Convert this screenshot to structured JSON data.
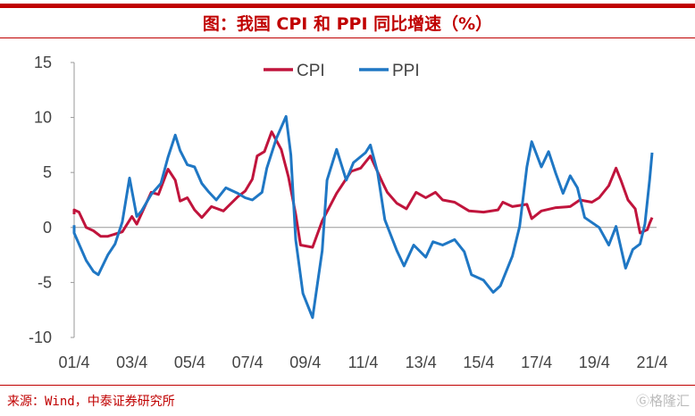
{
  "title": "图：我国 CPI 和 PPI 同比增速（%）",
  "source": "来源：Wind，中泰证券研究所",
  "logo": "格隆汇",
  "chart_data": {
    "type": "line",
    "title": "图：我国 CPI 和 PPI 同比增速（%）",
    "xlabel": "",
    "ylabel": "",
    "ylim": [
      -10,
      15
    ],
    "yticks": [
      "15",
      "10",
      "5",
      "0",
      "-5",
      "-10"
    ],
    "xticks": [
      "01/4",
      "03/4",
      "05/4",
      "07/4",
      "09/4",
      "11/4",
      "13/4",
      "15/4",
      "17/4",
      "19/4",
      "21/4"
    ],
    "xrange": [
      "2001-04",
      "2021-04"
    ],
    "legend": "top-center",
    "grid": false,
    "series": [
      {
        "name": "CPI",
        "color": "#c0143c",
        "points": [
          [
            "2001-01",
            1.2
          ],
          [
            "2001-04",
            1.6
          ],
          [
            "2001-06",
            1.4
          ],
          [
            "2001-09",
            0
          ],
          [
            "2001-12",
            -0.3
          ],
          [
            "2002-03",
            -0.8
          ],
          [
            "2002-06",
            -0.8
          ],
          [
            "2002-12",
            -0.4
          ],
          [
            "2003-04",
            1.0
          ],
          [
            "2003-06",
            0.3
          ],
          [
            "2003-12",
            3.2
          ],
          [
            "2004-03",
            3.0
          ],
          [
            "2004-07",
            5.3
          ],
          [
            "2004-10",
            4.3
          ],
          [
            "2004-12",
            2.4
          ],
          [
            "2005-03",
            2.7
          ],
          [
            "2005-06",
            1.6
          ],
          [
            "2005-09",
            0.9
          ],
          [
            "2006-01",
            1.9
          ],
          [
            "2006-06",
            1.5
          ],
          [
            "2006-12",
            2.8
          ],
          [
            "2007-03",
            3.3
          ],
          [
            "2007-06",
            4.4
          ],
          [
            "2007-08",
            6.5
          ],
          [
            "2007-11",
            6.9
          ],
          [
            "2008-02",
            8.7
          ],
          [
            "2008-06",
            7.1
          ],
          [
            "2008-09",
            4.6
          ],
          [
            "2008-12",
            1.2
          ],
          [
            "2009-02",
            -1.6
          ],
          [
            "2009-07",
            -1.8
          ],
          [
            "2009-11",
            0.6
          ],
          [
            "2010-05",
            3.1
          ],
          [
            "2010-11",
            5.1
          ],
          [
            "2011-03",
            5.4
          ],
          [
            "2011-07",
            6.5
          ],
          [
            "2011-12",
            4.1
          ],
          [
            "2012-02",
            3.2
          ],
          [
            "2012-06",
            2.2
          ],
          [
            "2012-10",
            1.7
          ],
          [
            "2013-02",
            3.2
          ],
          [
            "2013-06",
            2.7
          ],
          [
            "2013-10",
            3.2
          ],
          [
            "2014-01",
            2.5
          ],
          [
            "2014-06",
            2.3
          ],
          [
            "2014-12",
            1.5
          ],
          [
            "2015-06",
            1.4
          ],
          [
            "2015-12",
            1.6
          ],
          [
            "2016-02",
            2.3
          ],
          [
            "2016-06",
            1.9
          ],
          [
            "2016-12",
            2.1
          ],
          [
            "2017-02",
            0.8
          ],
          [
            "2017-06",
            1.5
          ],
          [
            "2017-12",
            1.8
          ],
          [
            "2018-06",
            1.9
          ],
          [
            "2018-10",
            2.5
          ],
          [
            "2019-03",
            2.3
          ],
          [
            "2019-06",
            2.7
          ],
          [
            "2019-10",
            3.8
          ],
          [
            "2020-01",
            5.4
          ],
          [
            "2020-03",
            4.3
          ],
          [
            "2020-06",
            2.5
          ],
          [
            "2020-09",
            1.7
          ],
          [
            "2020-11",
            -0.5
          ],
          [
            "2021-01",
            -0.3
          ],
          [
            "2021-02",
            -0.2
          ],
          [
            "2021-03",
            0.4
          ],
          [
            "2021-04",
            0.9
          ]
        ]
      },
      {
        "name": "PPI",
        "color": "#1f77c4",
        "points": [
          [
            "2001-01",
            0.2
          ],
          [
            "2001-04",
            -0.5
          ],
          [
            "2001-09",
            -3
          ],
          [
            "2001-12",
            -4.0
          ],
          [
            "2002-02",
            -4.3
          ],
          [
            "2002-06",
            -2.5
          ],
          [
            "2002-09",
            -1.5
          ],
          [
            "2002-12",
            0.5
          ],
          [
            "2003-03",
            4.5
          ],
          [
            "2003-06",
            1.0
          ],
          [
            "2003-08",
            1.5
          ],
          [
            "2003-12",
            3.0
          ],
          [
            "2004-04",
            4.0
          ],
          [
            "2004-07",
            6.4
          ],
          [
            "2004-10",
            8.4
          ],
          [
            "2004-12",
            7.0
          ],
          [
            "2005-03",
            5.7
          ],
          [
            "2005-06",
            5.5
          ],
          [
            "2005-09",
            4.0
          ],
          [
            "2005-12",
            3.2
          ],
          [
            "2006-03",
            2.5
          ],
          [
            "2006-07",
            3.6
          ],
          [
            "2006-12",
            3.1
          ],
          [
            "2007-03",
            2.7
          ],
          [
            "2007-06",
            2.5
          ],
          [
            "2007-10",
            3.2
          ],
          [
            "2007-12",
            5.4
          ],
          [
            "2008-04",
            8.1
          ],
          [
            "2008-08",
            10.1
          ],
          [
            "2008-10",
            6.6
          ],
          [
            "2008-12",
            -1.1
          ],
          [
            "2009-03",
            -6
          ],
          [
            "2009-07",
            -8.2
          ],
          [
            "2009-11",
            -2.1
          ],
          [
            "2010-01",
            4.3
          ],
          [
            "2010-05",
            7.1
          ],
          [
            "2010-09",
            4.3
          ],
          [
            "2010-12",
            5.9
          ],
          [
            "2011-05",
            6.8
          ],
          [
            "2011-07",
            7.5
          ],
          [
            "2011-10",
            5.0
          ],
          [
            "2012-01",
            0.7
          ],
          [
            "2012-06",
            -2.1
          ],
          [
            "2012-09",
            -3.5
          ],
          [
            "2013-01",
            -1.6
          ],
          [
            "2013-06",
            -2.7
          ],
          [
            "2013-09",
            -1.3
          ],
          [
            "2014-01",
            -1.6
          ],
          [
            "2014-06",
            -1.1
          ],
          [
            "2014-10",
            -2.2
          ],
          [
            "2015-01",
            -4.3
          ],
          [
            "2015-06",
            -4.8
          ],
          [
            "2015-10",
            -5.9
          ],
          [
            "2016-01",
            -5.3
          ],
          [
            "2016-06",
            -2.6
          ],
          [
            "2016-09",
            0.1
          ],
          [
            "2016-12",
            5.5
          ],
          [
            "2017-02",
            7.8
          ],
          [
            "2017-06",
            5.5
          ],
          [
            "2017-09",
            6.9
          ],
          [
            "2017-12",
            4.9
          ],
          [
            "2018-03",
            3.1
          ],
          [
            "2018-06",
            4.7
          ],
          [
            "2018-09",
            3.6
          ],
          [
            "2018-12",
            0.9
          ],
          [
            "2019-06",
            0
          ],
          [
            "2019-10",
            -1.6
          ],
          [
            "2020-01",
            0.1
          ],
          [
            "2020-05",
            -3.7
          ],
          [
            "2020-08",
            -2.0
          ],
          [
            "2020-11",
            -1.5
          ],
          [
            "2021-01",
            0.3
          ],
          [
            "2021-03",
            4.4
          ],
          [
            "2021-04",
            6.8
          ]
        ]
      }
    ]
  }
}
